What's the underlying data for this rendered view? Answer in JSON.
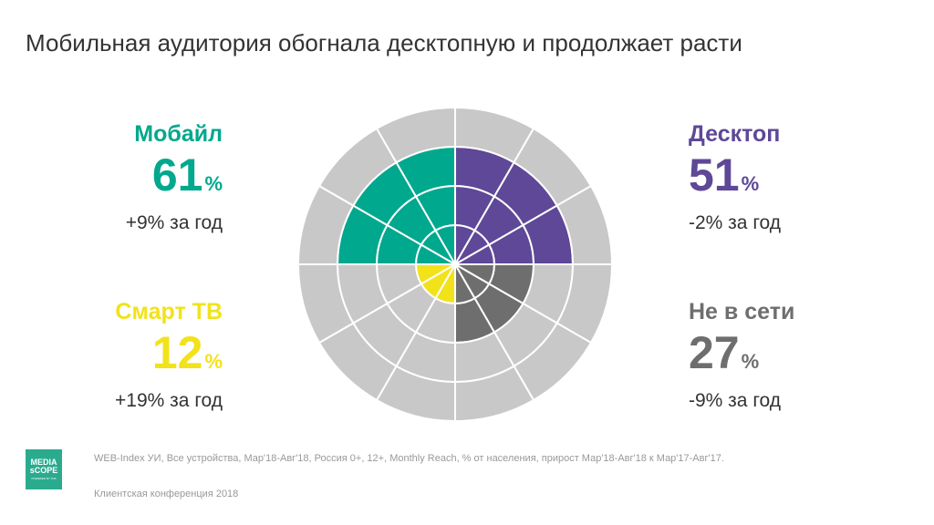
{
  "title": "Мобильная аудитория обогнала десктопную и продолжает расти",
  "blocks": {
    "mobile": {
      "name": "Мобайл",
      "value": "61",
      "unit": "%",
      "change": "+9% за год",
      "color": "#00a88e"
    },
    "desktop": {
      "name": "Десктоп",
      "value": "51",
      "unit": "%",
      "change": "-2% за год",
      "color": "#5e4897"
    },
    "smarttv": {
      "name": "Смарт ТВ",
      "value": "12",
      "unit": "%",
      "change": "+19% за год",
      "color": "#f2e21a"
    },
    "offline": {
      "name": "Не в сети",
      "value": "27",
      "unit": "%",
      "change": "-9% за год",
      "color": "#6e6e6e"
    }
  },
  "chart_data": {
    "type": "radial",
    "rings": 4,
    "sectors_per_quadrant": 3,
    "background_color": "#c8c8c8",
    "series": [
      {
        "name": "Мобайл",
        "value": 61,
        "color": "#00a88e"
      },
      {
        "name": "Десктоп",
        "value": 51,
        "color": "#5e4897"
      },
      {
        "name": "Смарт ТВ",
        "value": 12,
        "color": "#f2e21a"
      },
      {
        "name": "Не в сети",
        "value": 27,
        "color": "#6e6e6e"
      }
    ],
    "filled_rings": [
      3,
      3,
      1,
      2
    ]
  },
  "footer": {
    "source": "WEB-Index УИ, Все устройства, Мар'18-Авг'18, Россия 0+, 12+, Monthly Reach, % от населения, прирост Мар'18-Авг'18 к Мар'17-Авг'17.",
    "conference": "Клиентская конференция 2018"
  },
  "logo": {
    "line1": "MEDIA",
    "line2": "sCOPE",
    "line3": "POWERED BY TNS"
  }
}
